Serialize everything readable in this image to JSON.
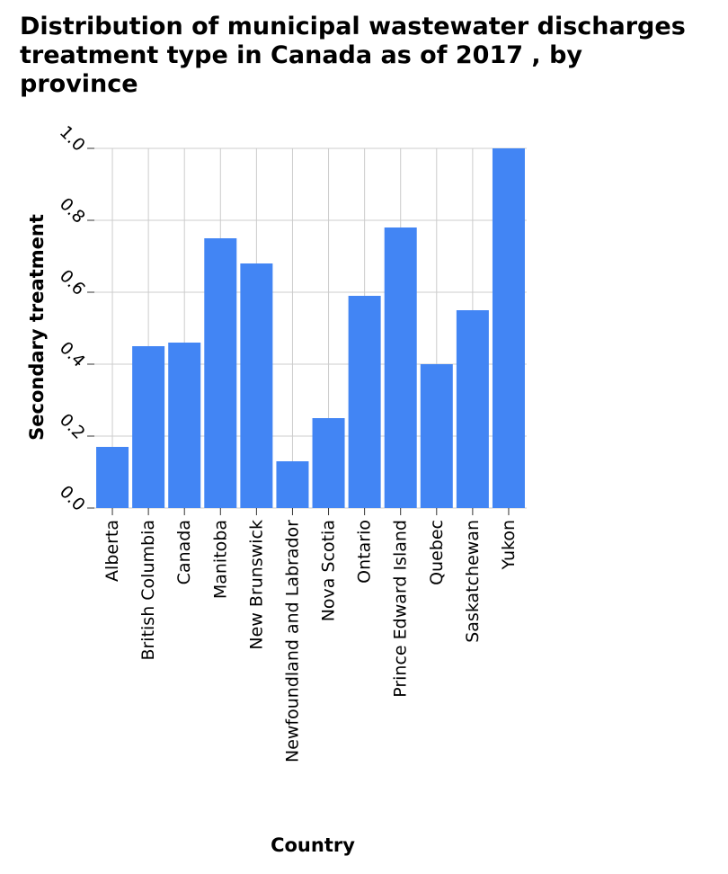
{
  "title_lines": [
    "Distribution of municipal wastewater discharges",
    "treatment type in Canada as of 2017 , by",
    "province"
  ],
  "chart_data": {
    "type": "bar",
    "title": "Distribution of municipal wastewater discharges treatment type in Canada as of 2017 , by province",
    "xlabel": "Country",
    "ylabel": "Secondary treatment",
    "categories": [
      "Alberta",
      "British Columbia",
      "Canada",
      "Manitoba",
      "New Brunswick",
      "Newfoundland and Labrador",
      "Nova Scotia",
      "Ontario",
      "Prince Edward Island",
      "Quebec",
      "Saskatchewan",
      "Yukon"
    ],
    "values": [
      0.17,
      0.45,
      0.46,
      0.75,
      0.68,
      0.13,
      0.25,
      0.59,
      0.78,
      0.4,
      0.55,
      1.0
    ],
    "ylim": [
      0,
      1.0
    ],
    "yticks": [
      "0.0",
      "0.2",
      "0.4",
      "0.6",
      "0.8",
      "1.0"
    ],
    "grid": true,
    "bar_color": "#4285f4",
    "grid_color": "#cccccc"
  }
}
